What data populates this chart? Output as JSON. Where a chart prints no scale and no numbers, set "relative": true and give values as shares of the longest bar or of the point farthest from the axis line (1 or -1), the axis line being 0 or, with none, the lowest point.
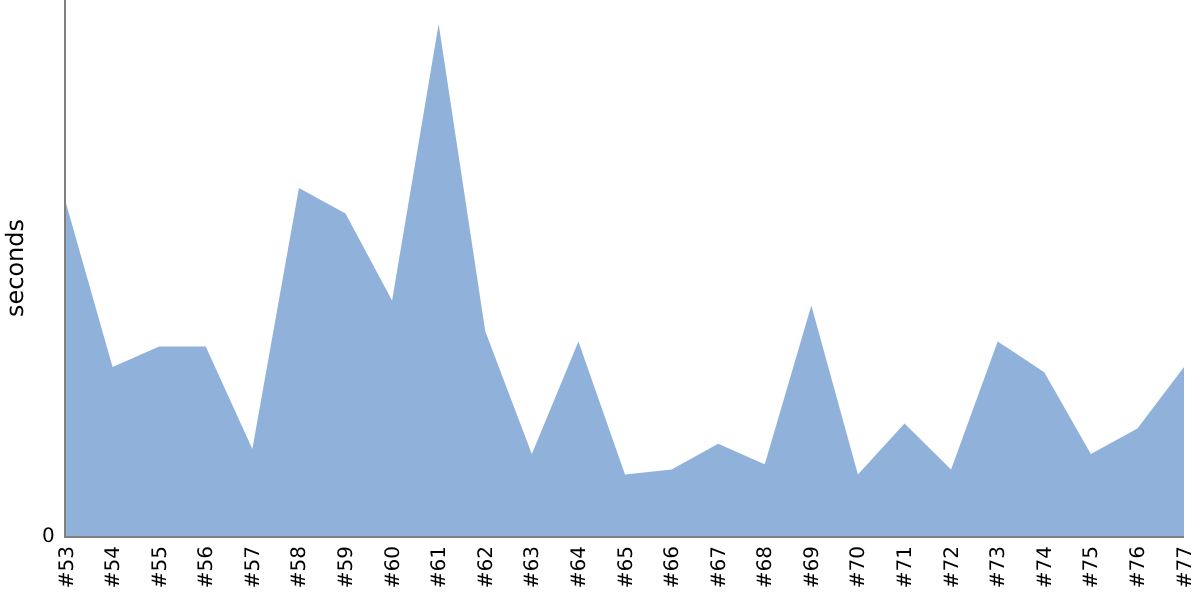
{
  "chart_data": {
    "type": "area",
    "ylabel": "seconds",
    "relative": true,
    "annotations": [
      "0"
    ],
    "categories": [
      "#53",
      "#54",
      "#55",
      "#56",
      "#57",
      "#58",
      "#59",
      "#60",
      "#61",
      "#62",
      "#63",
      "#64",
      "#65",
      "#66",
      "#67",
      "#68",
      "#69",
      "#70",
      "#71",
      "#72",
      "#73",
      "#74",
      "#75",
      "#76",
      "#77"
    ],
    "series": [
      {
        "color": "#90b2da",
        "values": [
          0.65,
          0.33,
          0.37,
          0.37,
          0.17,
          0.68,
          0.63,
          0.46,
          1,
          0.4,
          0.16,
          0.38,
          0.12,
          0.13,
          0.18,
          0.14,
          0.45,
          0.12,
          0.22,
          0.13,
          0.38,
          0.32,
          0.16,
          0.21,
          0.33
        ]
      }
    ]
  }
}
